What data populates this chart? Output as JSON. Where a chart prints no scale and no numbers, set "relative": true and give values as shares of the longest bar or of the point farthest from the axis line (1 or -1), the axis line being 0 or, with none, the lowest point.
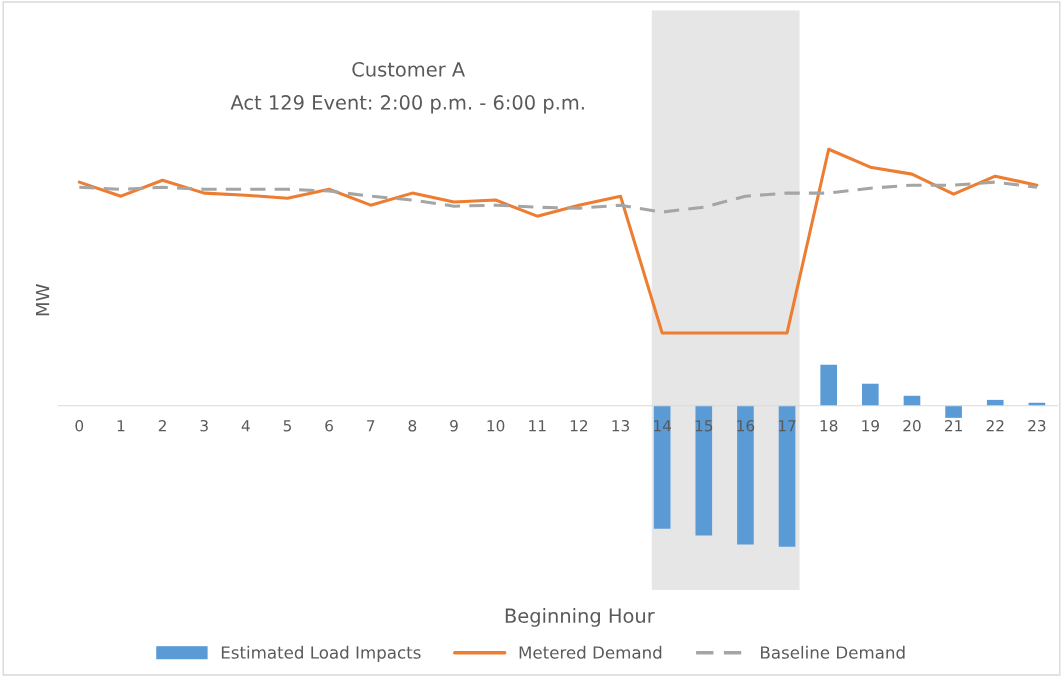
{
  "chart_data": {
    "type": "bar",
    "title": "Customer A",
    "subtitle": "Act 129 Event: 2:00 p.m. - 6:00 p.m.",
    "xlabel": "Beginning Hour",
    "ylabel": "MW",
    "relative": true,
    "tick_labels": "x",
    "legend": "bottom",
    "grid": false,
    "categories": [
      "0",
      "1",
      "2",
      "3",
      "4",
      "5",
      "6",
      "7",
      "8",
      "9",
      "10",
      "11",
      "12",
      "13",
      "14",
      "15",
      "16",
      "17",
      "18",
      "19",
      "20",
      "21",
      "22",
      "23"
    ],
    "series": [
      {
        "name": "Estimated Load Impacts",
        "color": "#5b9bd5",
        "values": [
          null,
          null,
          null,
          null,
          null,
          null,
          null,
          null,
          null,
          null,
          null,
          null,
          null,
          null,
          -0.479,
          -0.506,
          -0.541,
          -0.549,
          0.16,
          0.086,
          0.039,
          -0.047,
          0.023,
          0.012
        ]
      },
      {
        "name": "Metered Demand",
        "type": "line",
        "color": "#ed7d31",
        "line_style": "solid",
        "values": [
          0.872,
          0.817,
          0.879,
          0.829,
          0.821,
          0.809,
          0.844,
          0.782,
          0.829,
          0.794,
          0.802,
          0.739,
          0.782,
          0.817,
          0.284,
          0.284,
          0.284,
          0.284,
          1,
          0.93,
          0.903,
          0.825,
          0.895,
          0.86
        ]
      },
      {
        "name": "Baseline Demand",
        "type": "line",
        "color": "#a5a5a5",
        "line_style": "dashed",
        "values": [
          0.852,
          0.844,
          0.852,
          0.844,
          0.844,
          0.844,
          0.837,
          0.817,
          0.802,
          0.778,
          0.782,
          0.774,
          0.77,
          0.782,
          0.755,
          0.774,
          0.817,
          0.829,
          0.829,
          0.848,
          0.86,
          0.86,
          0.872,
          0.852
        ]
      }
    ],
    "bands": [
      {
        "axis": "x",
        "from": "14",
        "to": "17",
        "color": "#e7e6e6"
      }
    ]
  }
}
